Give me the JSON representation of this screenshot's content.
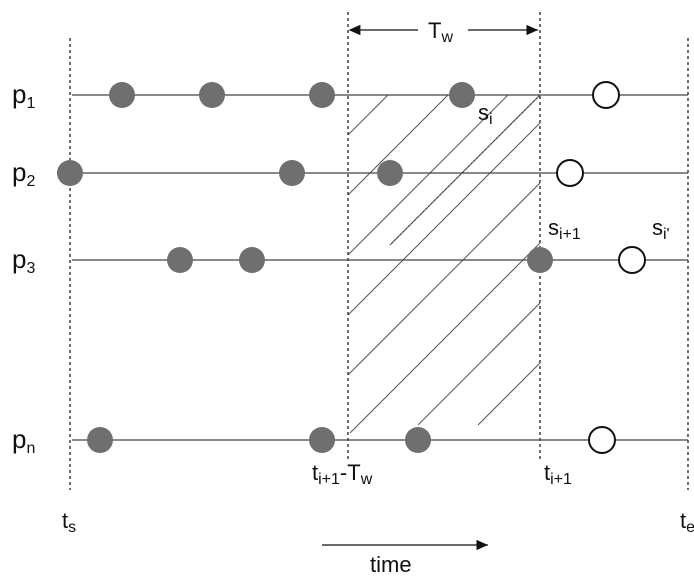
{
  "processes": [
    {
      "id": "p1",
      "base": "p",
      "sub": "1",
      "filled_times": [
        122,
        212,
        322,
        462
      ],
      "open_times": [
        606
      ]
    },
    {
      "id": "p2",
      "base": "p",
      "sub": "2",
      "filled_times": [
        70,
        292,
        390
      ],
      "open_times": [
        570
      ]
    },
    {
      "id": "p3",
      "base": "p",
      "sub": "3",
      "filled_times": [
        180,
        252,
        540
      ],
      "open_times": [
        632
      ]
    },
    {
      "id": "pn",
      "base": "p",
      "sub": "n",
      "filled_times": [
        100,
        322,
        418
      ],
      "open_times": [
        602
      ]
    }
  ],
  "labels": {
    "window": {
      "base": "T",
      "sub": "w"
    },
    "s_i": {
      "base": "s",
      "sub": "i"
    },
    "s_i1": {
      "base": "s",
      "sub": "i+1"
    },
    "s_ip": {
      "base": "s",
      "sub": "i'"
    },
    "t_s": {
      "base": "t",
      "sub": "s"
    },
    "t_e": {
      "base": "t",
      "sub": "e"
    },
    "t_i1": {
      "base": "t",
      "sub": "i+1"
    },
    "t_i1_minus_tw": {
      "part1": "t",
      "sub1": "i+1",
      "part2": "-T",
      "sub2": "w"
    },
    "time": "time"
  },
  "colors": {
    "filled": "#6f6f6f",
    "stroke": "#111111",
    "open_fill": "#ffffff"
  }
}
